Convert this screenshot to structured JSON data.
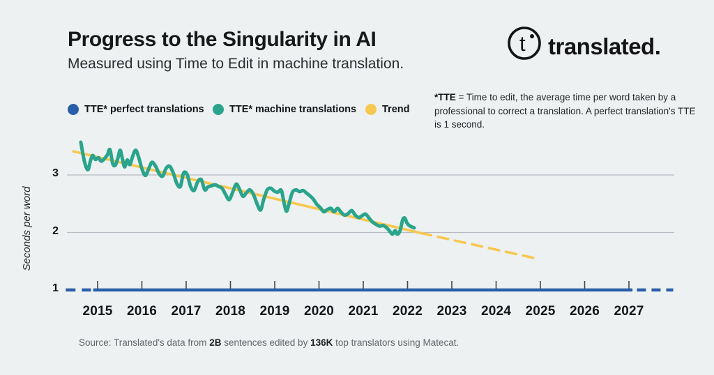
{
  "page": {
    "background": "#edf1f2"
  },
  "header": {
    "title": "Progress to the Singularity in AI",
    "subtitle": "Measured using Time to Edit in machine translation."
  },
  "logo": {
    "brand": "translated.",
    "mark_letter": "t"
  },
  "legend": {
    "items": [
      {
        "label": "TTE* perfect translations",
        "color": "#2b5ea8"
      },
      {
        "label": "TTE* machine translations",
        "color": "#2aa48c"
      },
      {
        "label": "Trend",
        "color": "#f7c850"
      }
    ]
  },
  "note": {
    "lead": "*TTE",
    "body": " = Time to edit, the average time per word taken by a professional to correct a translation. A perfect translation's TTE is 1 second."
  },
  "source": {
    "label": "Source:",
    "part1": "Translated's data from",
    "bold1": "2B",
    "part2": "sentences edited by",
    "bold2": "136K",
    "part3": "top translators using Matecat."
  },
  "chart_data": {
    "type": "line",
    "title": "Progress to the Singularity in AI",
    "xlabel": "",
    "ylabel": "Seconds per word",
    "x_ticks": [
      2015,
      2016,
      2017,
      2018,
      2019,
      2020,
      2021,
      2022,
      2023,
      2024,
      2025,
      2026,
      2027
    ],
    "y_ticks": [
      3,
      2,
      1
    ],
    "xlim": [
      2014.31,
      2028.02
    ],
    "ylim": [
      0.85,
      3.75
    ],
    "gridlines_y": [
      3,
      2
    ],
    "grid": true,
    "legend_position": "top-left",
    "colors": {
      "gridline": "#b7babe",
      "tick": "#43464b"
    },
    "series": [
      {
        "name": "TTE* perfect translations",
        "color": "#2b5ea8",
        "value": 1.0,
        "dashed_left": [
          2014.28,
          2014.85
        ],
        "solid": [
          2014.9,
          2027.08
        ],
        "dashed_right": [
          2027.18,
          2028.0
        ]
      },
      {
        "name": "TTE* machine translations",
        "color": "#2aa48c",
        "points": [
          [
            2014.62,
            3.57
          ],
          [
            2014.66,
            3.4
          ],
          [
            2014.7,
            3.24
          ],
          [
            2014.75,
            3.12
          ],
          [
            2014.79,
            3.1
          ],
          [
            2014.84,
            3.25
          ],
          [
            2014.89,
            3.34
          ],
          [
            2014.95,
            3.27
          ],
          [
            2015.02,
            3.3
          ],
          [
            2015.08,
            3.24
          ],
          [
            2015.15,
            3.28
          ],
          [
            2015.22,
            3.35
          ],
          [
            2015.28,
            3.44
          ],
          [
            2015.34,
            3.2
          ],
          [
            2015.4,
            3.17
          ],
          [
            2015.46,
            3.3
          ],
          [
            2015.51,
            3.43
          ],
          [
            2015.56,
            3.28
          ],
          [
            2015.61,
            3.14
          ],
          [
            2015.67,
            3.26
          ],
          [
            2015.73,
            3.18
          ],
          [
            2015.79,
            3.32
          ],
          [
            2015.86,
            3.43
          ],
          [
            2015.93,
            3.3
          ],
          [
            2016.0,
            3.11
          ],
          [
            2016.08,
            2.99
          ],
          [
            2016.16,
            3.12
          ],
          [
            2016.23,
            3.22
          ],
          [
            2016.31,
            3.15
          ],
          [
            2016.39,
            3.02
          ],
          [
            2016.47,
            2.98
          ],
          [
            2016.55,
            3.12
          ],
          [
            2016.63,
            3.15
          ],
          [
            2016.71,
            3.03
          ],
          [
            2016.79,
            2.85
          ],
          [
            2016.87,
            2.8
          ],
          [
            2016.94,
            3.03
          ],
          [
            2017.02,
            3.01
          ],
          [
            2017.1,
            2.8
          ],
          [
            2017.18,
            2.73
          ],
          [
            2017.26,
            2.88
          ],
          [
            2017.34,
            2.92
          ],
          [
            2017.42,
            2.74
          ],
          [
            2017.49,
            2.79
          ],
          [
            2017.57,
            2.81
          ],
          [
            2017.65,
            2.83
          ],
          [
            2017.73,
            2.8
          ],
          [
            2017.81,
            2.77
          ],
          [
            2017.89,
            2.66
          ],
          [
            2017.97,
            2.57
          ],
          [
            2018.05,
            2.7
          ],
          [
            2018.13,
            2.84
          ],
          [
            2018.2,
            2.76
          ],
          [
            2018.28,
            2.63
          ],
          [
            2018.36,
            2.69
          ],
          [
            2018.44,
            2.74
          ],
          [
            2018.52,
            2.66
          ],
          [
            2018.6,
            2.5
          ],
          [
            2018.68,
            2.39
          ],
          [
            2018.75,
            2.57
          ],
          [
            2018.83,
            2.74
          ],
          [
            2018.91,
            2.77
          ],
          [
            2018.99,
            2.72
          ],
          [
            2019.07,
            2.7
          ],
          [
            2019.15,
            2.73
          ],
          [
            2019.22,
            2.48
          ],
          [
            2019.27,
            2.37
          ],
          [
            2019.33,
            2.52
          ],
          [
            2019.4,
            2.7
          ],
          [
            2019.48,
            2.74
          ],
          [
            2019.56,
            2.71
          ],
          [
            2019.64,
            2.73
          ],
          [
            2019.71,
            2.69
          ],
          [
            2019.79,
            2.64
          ],
          [
            2019.87,
            2.58
          ],
          [
            2019.95,
            2.49
          ],
          [
            2020.03,
            2.43
          ],
          [
            2020.11,
            2.36
          ],
          [
            2020.19,
            2.4
          ],
          [
            2020.27,
            2.42
          ],
          [
            2020.34,
            2.36
          ],
          [
            2020.42,
            2.42
          ],
          [
            2020.5,
            2.35
          ],
          [
            2020.58,
            2.3
          ],
          [
            2020.66,
            2.33
          ],
          [
            2020.74,
            2.38
          ],
          [
            2020.82,
            2.3
          ],
          [
            2020.9,
            2.26
          ],
          [
            2020.97,
            2.29
          ],
          [
            2021.05,
            2.32
          ],
          [
            2021.13,
            2.25
          ],
          [
            2021.21,
            2.18
          ],
          [
            2021.29,
            2.14
          ],
          [
            2021.37,
            2.11
          ],
          [
            2021.45,
            2.12
          ],
          [
            2021.53,
            2.08
          ],
          [
            2021.6,
            2.02
          ],
          [
            2021.66,
            1.97
          ],
          [
            2021.72,
            2.03
          ],
          [
            2021.77,
            1.97
          ],
          [
            2021.83,
            2.03
          ],
          [
            2021.89,
            2.22
          ],
          [
            2021.94,
            2.25
          ],
          [
            2021.99,
            2.16
          ],
          [
            2022.06,
            2.11
          ],
          [
            2022.15,
            2.08
          ]
        ]
      },
      {
        "name": "Trend",
        "color": "#f7c850",
        "solid": [
          [
            2014.45,
            3.41
          ],
          [
            2022.3,
            1.99
          ]
        ],
        "dashed": [
          [
            2022.3,
            1.99
          ],
          [
            2024.95,
            1.54
          ]
        ]
      }
    ]
  }
}
